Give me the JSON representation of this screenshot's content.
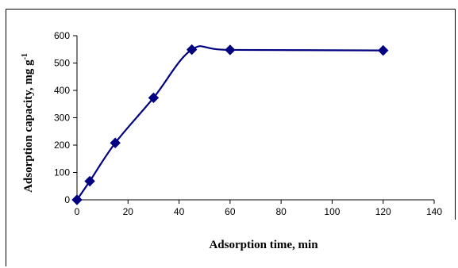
{
  "chart_data": {
    "type": "line",
    "title": "",
    "xlabel": "Adsorption time, min",
    "ylabel": "Adsorption capacity, mg g",
    "ylabel_superscript": "-1",
    "xlim": [
      0,
      140
    ],
    "ylim": [
      0,
      600
    ],
    "xticks": [
      0,
      20,
      40,
      60,
      80,
      100,
      120,
      140
    ],
    "yticks": [
      0,
      100,
      200,
      300,
      400,
      500,
      600
    ],
    "grid": false,
    "legend": "none",
    "series": [
      {
        "color": "#000080",
        "marker": "diamond",
        "smooth": true,
        "x": [
          0,
          5,
          15,
          30,
          45,
          60,
          120
        ],
        "y": [
          0,
          68,
          208,
          373,
          549,
          548,
          546
        ]
      }
    ]
  }
}
